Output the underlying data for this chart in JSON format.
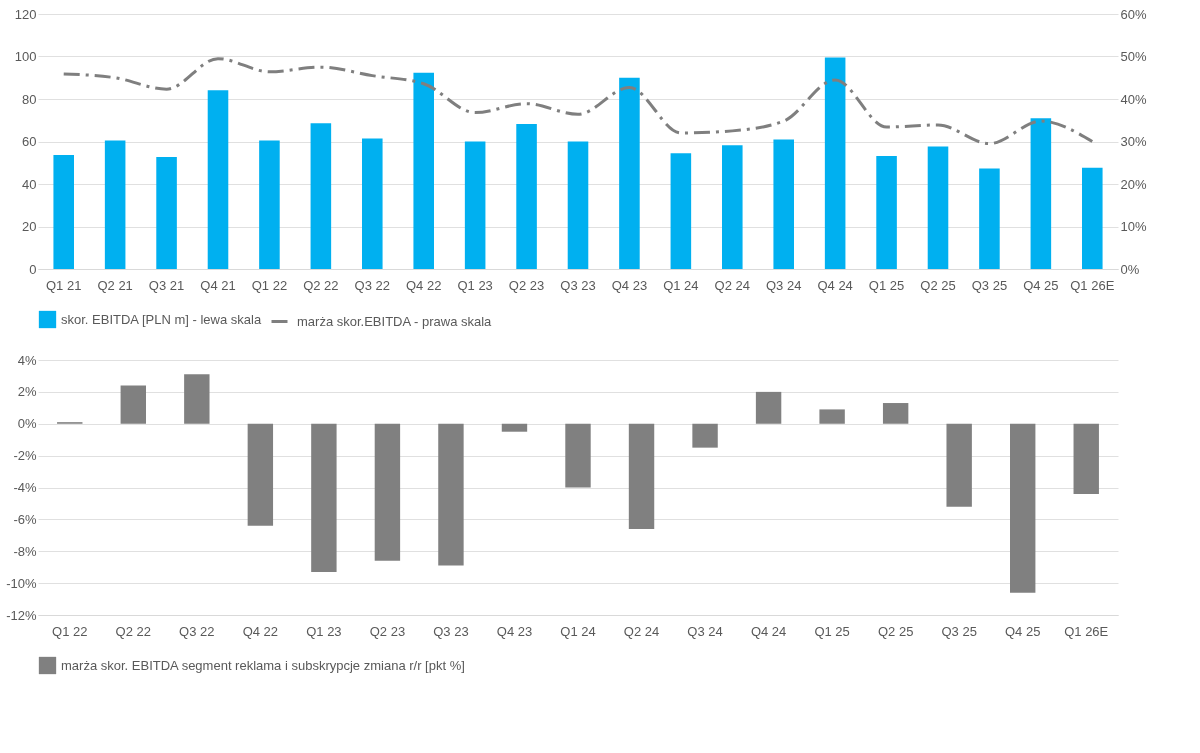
{
  "chart_data": [
    {
      "type": "bar",
      "categories": [
        "Q1 21",
        "Q2 21",
        "Q3 21",
        "Q4 21",
        "Q1 22",
        "Q2 22",
        "Q3 22",
        "Q4 22",
        "Q1 23",
        "Q2 23",
        "Q3 23",
        "Q4 23",
        "Q1 24",
        "Q2 24",
        "Q3 24",
        "Q4 24",
        "Q1 25",
        "Q2 25",
        "Q3 25",
        "Q4 25",
        "Q1 26E"
      ],
      "series": [
        {
          "name": "skor. EBITDA [PLN m] - lewa skala",
          "type": "bar",
          "color": "#00b0f0",
          "values": [
            53.6,
            60.5,
            52.7,
            84.1,
            60.5,
            68.6,
            61.4,
            92.3,
            60,
            68.2,
            60,
            90,
            54.5,
            58.2,
            60.9,
            99.5,
            53.2,
            57.7,
            47.3,
            70.9,
            47.7
          ]
        },
        {
          "name": "marża skor.EBITDA  - prawa skala",
          "type": "line",
          "axis": "y2",
          "color": "#7f7f7f",
          "line_style": "dashed",
          "values": [
            45.9,
            45,
            42.3,
            49.5,
            46.4,
            47.5,
            45.5,
            43.6,
            36.8,
            38.9,
            36.4,
            42.7,
            32,
            32.5,
            34.8,
            44.5,
            33.4,
            33.9,
            29.5,
            34.8,
            30
          ]
        }
      ],
      "ylim": [
        0,
        120
      ],
      "yticks": [
        0,
        20,
        40,
        60,
        80,
        100,
        120
      ],
      "y2lim": [
        0,
        60
      ],
      "y2ticks": [
        {
          "value": 0,
          "label": "0%"
        },
        {
          "value": 10,
          "label": "10%"
        },
        {
          "value": 20,
          "label": "20%"
        },
        {
          "value": 30,
          "label": "30%"
        },
        {
          "value": 40,
          "label": "40%"
        },
        {
          "value": 50,
          "label": "50%"
        },
        {
          "value": 60,
          "label": "60%"
        }
      ],
      "grid": "y",
      "legend": "bottom"
    },
    {
      "type": "bar",
      "categories": [
        "Q1 22",
        "Q2 22",
        "Q3 22",
        "Q4 22",
        "Q1 23",
        "Q2 23",
        "Q3 23",
        "Q4 23",
        "Q1 24",
        "Q2 24",
        "Q3 24",
        "Q4 24",
        "Q1 25",
        "Q2 25",
        "Q3 25",
        "Q4 25",
        "Q1 26E"
      ],
      "series": [
        {
          "name": "marża skor. EBITDA segment reklama i subskrypcje zmiana r/r [pkt %]",
          "type": "bar",
          "color": "#808080",
          "values": [
            0.1,
            2.4,
            3.1,
            -6.4,
            -9.3,
            -8.6,
            -8.9,
            -0.5,
            -4.0,
            -6.6,
            -1.5,
            2.0,
            0.9,
            1.3,
            -5.2,
            -10.6,
            -4.4
          ]
        }
      ],
      "ylim": [
        -12,
        4
      ],
      "yticks": [
        {
          "value": -12,
          "label": "-12%"
        },
        {
          "value": -10,
          "label": "-10%"
        },
        {
          "value": -8,
          "label": "-8%"
        },
        {
          "value": -6,
          "label": "-6%"
        },
        {
          "value": -4,
          "label": "-4%"
        },
        {
          "value": -2,
          "label": "-2%"
        },
        {
          "value": 0,
          "label": "0%"
        },
        {
          "value": 2,
          "label": "2%"
        },
        {
          "value": 4,
          "label": "4%"
        }
      ],
      "grid": "y",
      "legend": "bottom"
    }
  ]
}
